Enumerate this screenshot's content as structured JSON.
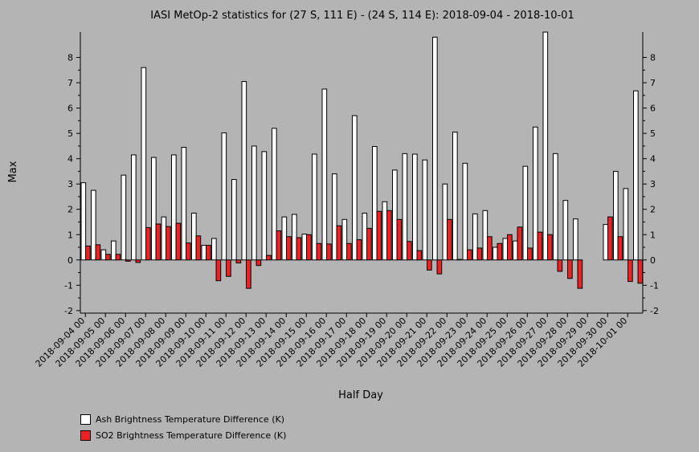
{
  "chart_data": {
    "type": "bar",
    "title": "IASI MetOp-2 statistics for (27 S, 111 E) - (24 S, 114 E): 2018-09-04 - 2018-10-01",
    "xlabel": "Half Day",
    "ylabel": "Max",
    "ylim": [
      -2.1,
      9.0
    ],
    "yticks": [
      -2,
      -1,
      0,
      1,
      2,
      3,
      4,
      5,
      6,
      7,
      8
    ],
    "categories": [
      "2018-09-04 00",
      "2018-09-04 12",
      "2018-09-05 00",
      "2018-09-05 12",
      "2018-09-06 00",
      "2018-09-06 12",
      "2018-09-07 00",
      "2018-09-07 12",
      "2018-09-08 00",
      "2018-09-08 12",
      "2018-09-09 00",
      "2018-09-09 12",
      "2018-09-10 00",
      "2018-09-10 12",
      "2018-09-11 00",
      "2018-09-11 12",
      "2018-09-12 00",
      "2018-09-12 12",
      "2018-09-13 00",
      "2018-09-13 12",
      "2018-09-14 00",
      "2018-09-14 12",
      "2018-09-15 00",
      "2018-09-15 12",
      "2018-09-16 00",
      "2018-09-16 12",
      "2018-09-17 00",
      "2018-09-17 12",
      "2018-09-18 00",
      "2018-09-18 12",
      "2018-09-19 00",
      "2018-09-19 12",
      "2018-09-20 00",
      "2018-09-20 12",
      "2018-09-21 00",
      "2018-09-21 12",
      "2018-09-22 00",
      "2018-09-22 12",
      "2018-09-23 00",
      "2018-09-23 12",
      "2018-09-24 00",
      "2018-09-24 12",
      "2018-09-25 00",
      "2018-09-25 12",
      "2018-09-26 00",
      "2018-09-26 12",
      "2018-09-27 00",
      "2018-09-27 12",
      "2018-09-28 00",
      "2018-09-28 12",
      "2018-09-29 00",
      "2018-09-29 12",
      "2018-09-30 00",
      "2018-09-30 12",
      "2018-10-01 00",
      "2018-10-01 12"
    ],
    "tick_labels": [
      "2018-09-04 00",
      "2018-09-05 00",
      "2018-09-06 00",
      "2018-09-07 00",
      "2018-09-08 00",
      "2018-09-09 00",
      "2018-09-10 00",
      "2018-09-11 00",
      "2018-09-12 00",
      "2018-09-13 00",
      "2018-09-14 00",
      "2018-09-15 00",
      "2018-09-16 00",
      "2018-09-17 00",
      "2018-09-18 00",
      "2018-09-19 00",
      "2018-09-20 00",
      "2018-09-21 00",
      "2018-09-22 00",
      "2018-09-23 00",
      "2018-09-24 00",
      "2018-09-25 00",
      "2018-09-26 00",
      "2018-09-27 00",
      "2018-09-28 00",
      "2018-09-29 00",
      "2018-09-30 00",
      "2018-10-01 00"
    ],
    "series": [
      {
        "name": "Ash Brightness Temperature Difference (K)",
        "color": "#ffffff",
        "values": [
          3.05,
          2.75,
          0.4,
          0.75,
          3.35,
          4.15,
          7.6,
          4.05,
          1.7,
          4.15,
          4.45,
          1.85,
          0.58,
          0.85,
          5.02,
          3.18,
          7.05,
          4.5,
          4.28,
          5.2,
          1.7,
          1.8,
          1.02,
          4.18,
          6.75,
          3.4,
          1.6,
          5.7,
          1.85,
          4.48,
          2.3,
          3.55,
          4.2,
          4.18,
          3.95,
          8.8,
          3.0,
          5.05,
          3.82,
          1.82,
          1.95,
          0.5,
          0.85,
          0.75,
          3.7,
          5.25,
          9.0,
          4.2,
          2.35,
          1.62,
          null,
          null,
          1.4,
          3.5,
          2.82,
          6.68
        ]
      },
      {
        "name": "SO2 Brightness Temperature Difference (K)",
        "color": "#ee2222",
        "values": [
          0.55,
          0.6,
          0.22,
          0.22,
          -0.05,
          -0.1,
          1.28,
          1.42,
          1.32,
          1.45,
          0.67,
          0.95,
          0.58,
          -0.82,
          -0.65,
          -0.12,
          -1.12,
          -0.22,
          0.18,
          1.15,
          0.92,
          0.88,
          1.0,
          0.65,
          0.63,
          1.35,
          0.65,
          0.8,
          1.25,
          1.92,
          1.95,
          1.6,
          0.73,
          0.37,
          -0.4,
          -0.55,
          1.6,
          0.02,
          0.4,
          0.47,
          0.92,
          0.65,
          1.0,
          1.3,
          0.47,
          1.1,
          1.0,
          -0.45,
          -0.73,
          -1.12,
          null,
          null,
          1.7,
          0.92,
          -0.85,
          -0.92
        ]
      }
    ],
    "legend_placement": "bottom-left"
  }
}
